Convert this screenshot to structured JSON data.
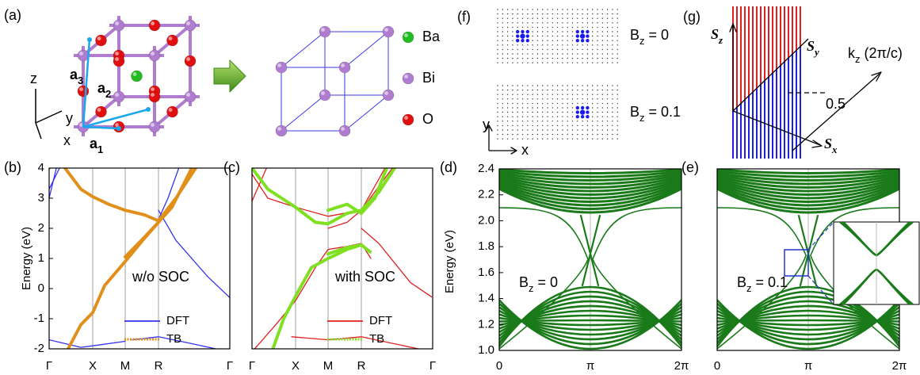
{
  "panel_labels": {
    "a": "(a)",
    "b": "(b)",
    "c": "(c)",
    "d": "(d)",
    "e": "(e)",
    "f": "(f)",
    "g": "(g)"
  },
  "panel_a": {
    "axes": {
      "z": "z",
      "y": "y",
      "x": "x"
    },
    "vectors": [
      {
        "base": "a",
        "sub": "1"
      },
      {
        "base": "a",
        "sub": "2"
      },
      {
        "base": "a",
        "sub": "3"
      }
    ],
    "legend": [
      "Ba",
      "Bi",
      "O"
    ]
  },
  "panel_b": {
    "y_label": "Energy (eV)",
    "yticks": [
      "4",
      "3",
      "2",
      "1",
      "0",
      "-1",
      "-2"
    ],
    "xticks": [
      "Γ",
      "X",
      "M",
      "R",
      "Γ"
    ],
    "annotation": "w/o SOC",
    "legend": [
      "DFT",
      "TB"
    ]
  },
  "panel_c": {
    "xticks": [
      "Γ",
      "X",
      "M",
      "R",
      "Γ"
    ],
    "annotation": "with SOC",
    "legend": [
      "DFT",
      "TB"
    ]
  },
  "panel_d": {
    "y_label": "Energy (eV)",
    "yticks": [
      "2.4",
      "2.2",
      "2.0",
      "1.8",
      "1.6",
      "1.4",
      "1.2",
      "1.0"
    ],
    "xticks": [
      "0",
      "π",
      "2π"
    ],
    "annotation": {
      "base": "B",
      "sub": "z",
      "rest": " = 0"
    }
  },
  "panel_e": {
    "xticks": [
      "0",
      "π",
      "2π"
    ],
    "annotation": {
      "base": "B",
      "sub": "z",
      "rest": " = 0.1"
    }
  },
  "panel_f": {
    "labels": [
      {
        "base": "B",
        "sub": "z",
        "rest": " = 0"
      },
      {
        "base": "B",
        "sub": "z",
        "rest": " = 0.1"
      }
    ],
    "axes": {
      "y": "y",
      "x": "x"
    }
  },
  "panel_g": {
    "axes": {
      "z": {
        "base": "S",
        "sub": "z"
      },
      "y": {
        "base": "S",
        "sub": "y"
      },
      "x": {
        "base": "S",
        "sub": "x"
      }
    },
    "kz": {
      "base": "k",
      "sub": "z",
      "rest": " (2π/c)"
    },
    "tick": "0.5"
  }
}
